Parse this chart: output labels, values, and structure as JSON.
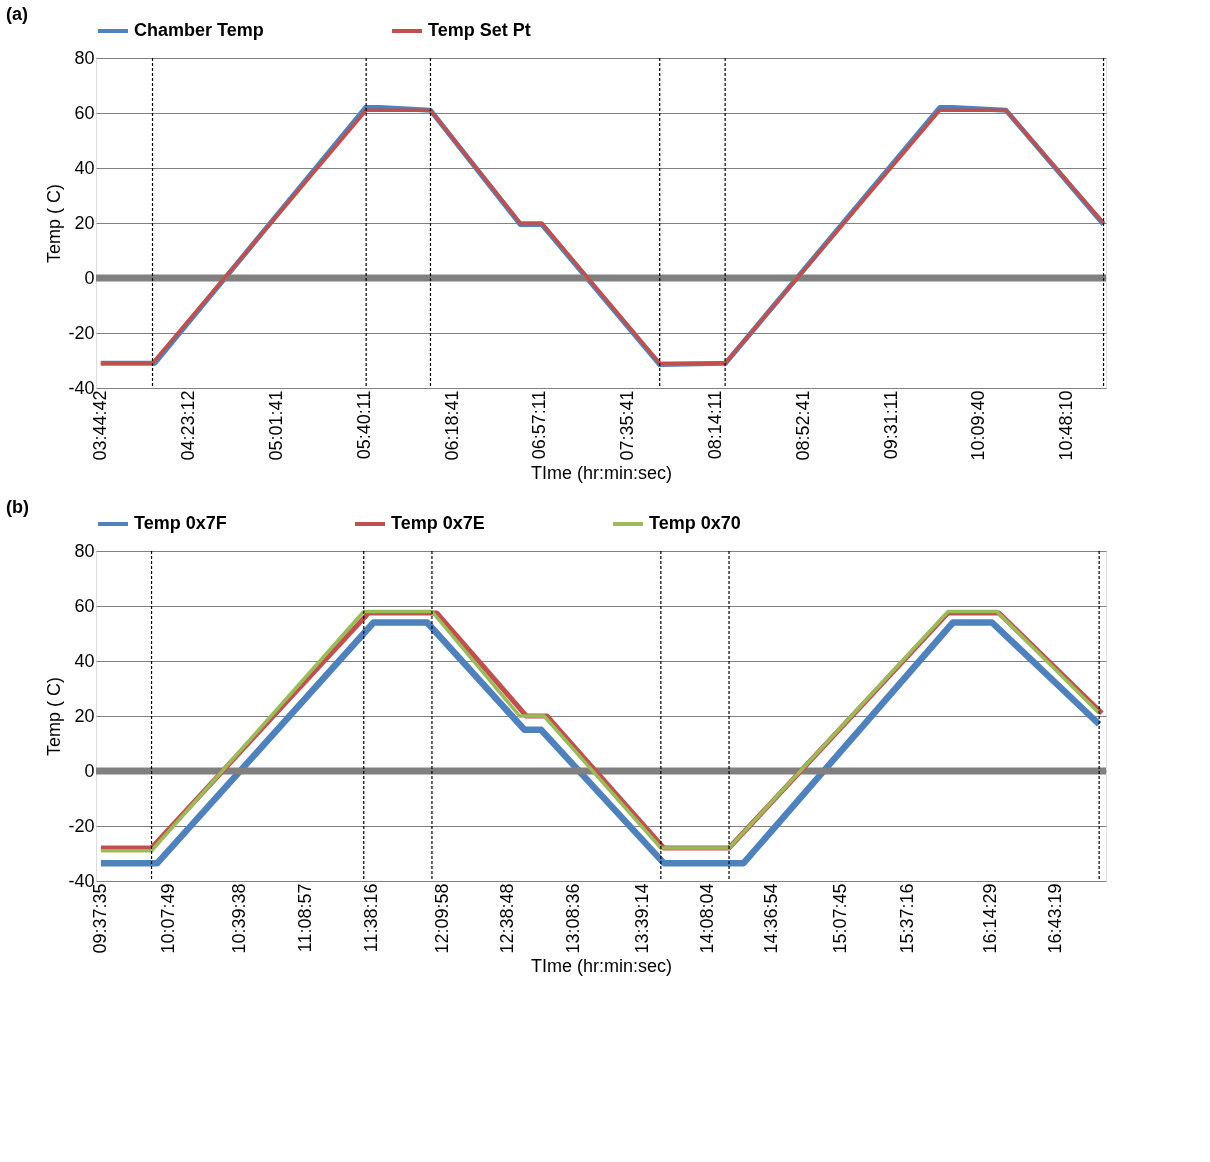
{
  "chart_data": [
    {
      "type": "line",
      "title": "(a)",
      "xlabel": "TIme (hr:min:sec)",
      "ylabel": "Temp ( C)",
      "legend": "top",
      "grid": "y",
      "marker": "none",
      "line_style": "solid",
      "xlim": [
        3.71,
        11.09
      ],
      "ylim": [
        -40,
        80
      ],
      "yticks": [
        -40,
        -20,
        0,
        20,
        40,
        60,
        80
      ],
      "xticks": [
        {
          "value": 3.745,
          "label": "03:44:42"
        },
        {
          "value": 4.3867,
          "label": "04:23:12"
        },
        {
          "value": 5.0281,
          "label": "05:01:41"
        },
        {
          "value": 5.6697,
          "label": "05:40:11"
        },
        {
          "value": 6.3114,
          "label": "06:18:41"
        },
        {
          "value": 6.9531,
          "label": "06:57:11"
        },
        {
          "value": 7.5947,
          "label": "07:35:41"
        },
        {
          "value": 8.2364,
          "label": "08:14:11"
        },
        {
          "value": 8.8781,
          "label": "08:52:41"
        },
        {
          "value": 9.5197,
          "label": "09:31:11"
        },
        {
          "value": 10.1611,
          "label": "10:09:40"
        },
        {
          "value": 10.8028,
          "label": "10:48:10"
        }
      ],
      "series": [
        {
          "name": "Chamber Temp",
          "color": "#4f81bd",
          "x": [
            3.745,
            4.14,
            5.68,
            5.78,
            6.154,
            6.81,
            6.967,
            7.829,
            8.31,
            9.875,
            9.97,
            10.359,
            11.072
          ],
          "values": [
            -31,
            -31,
            62,
            62,
            61,
            19.5,
            19.5,
            -31.5,
            -31,
            62,
            62,
            61,
            19.5
          ]
        },
        {
          "name": "Temp Set Pt",
          "color": "#c0504d",
          "x": [
            3.745,
            4.123,
            5.684,
            6.154,
            6.81,
            6.967,
            7.829,
            8.307,
            9.875,
            10.359,
            11.072
          ],
          "values": [
            -31,
            -31,
            61,
            61,
            20,
            20,
            -31,
            -31,
            61,
            61,
            20
          ]
        }
      ],
      "ref_lines": [
        {
          "axis": "y",
          "value": 0,
          "color": "#808080",
          "line_style": "solid"
        },
        {
          "axis": "x",
          "value": 4.123,
          "color": "#000000",
          "line_style": "dashed"
        },
        {
          "axis": "x",
          "value": 5.684,
          "color": "#000000",
          "line_style": "dashed"
        },
        {
          "axis": "x",
          "value": 6.154,
          "color": "#000000",
          "line_style": "dashed"
        },
        {
          "axis": "x",
          "value": 7.829,
          "color": "#000000",
          "line_style": "dashed"
        },
        {
          "axis": "x",
          "value": 8.307,
          "color": "#000000",
          "line_style": "dashed"
        },
        {
          "axis": "x",
          "value": 11.072,
          "color": "#000000",
          "line_style": "dashed"
        }
      ]
    },
    {
      "type": "line",
      "title": "(b)",
      "xlabel": "TIme (hr:min:sec)",
      "ylabel": "Temp ( C)",
      "legend": "top",
      "grid": "y",
      "marker": "none",
      "line_style": "solid",
      "xlim": [
        9.59,
        17.1
      ],
      "ylim": [
        -40,
        80
      ],
      "yticks": [
        -40,
        -20,
        0,
        20,
        40,
        60,
        80
      ],
      "xticks": [
        {
          "value": 9.6264,
          "label": "09:37:35"
        },
        {
          "value": 10.1303,
          "label": "10:07:49"
        },
        {
          "value": 10.6606,
          "label": "10:39:38"
        },
        {
          "value": 11.1492,
          "label": "11:08:57"
        },
        {
          "value": 11.6378,
          "label": "11:38:16"
        },
        {
          "value": 12.1661,
          "label": "12:09:58"
        },
        {
          "value": 12.6467,
          "label": "12:38:48"
        },
        {
          "value": 13.1433,
          "label": "13:08:36"
        },
        {
          "value": 13.6539,
          "label": "13:39:14"
        },
        {
          "value": 14.1344,
          "label": "14:08:04"
        },
        {
          "value": 14.615,
          "label": "14:36:54"
        },
        {
          "value": 15.1292,
          "label": "15:07:45"
        },
        {
          "value": 15.6211,
          "label": "15:37:16"
        },
        {
          "value": 16.2414,
          "label": "16:14:29"
        },
        {
          "value": 16.7219,
          "label": "16:43:19"
        }
      ],
      "series": [
        {
          "name": "Temp 0x7F",
          "color": "#4f81bd",
          "x": [
            9.6264,
            10.046,
            11.654,
            12.052,
            12.776,
            12.899,
            13.812,
            14.405,
            15.962,
            16.252,
            17.049
          ],
          "values": [
            -33.5,
            -33.5,
            54,
            54,
            15,
            15,
            -33.5,
            -33.5,
            54,
            54,
            17
          ]
        },
        {
          "name": "Temp 0x7E",
          "color": "#c0504d",
          "x": [
            9.6264,
            10.003,
            11.618,
            12.124,
            12.79,
            12.943,
            13.812,
            14.297,
            15.926,
            16.303,
            17.07
          ],
          "values": [
            -28,
            -28,
            57.5,
            57.5,
            20,
            20,
            -28,
            -28,
            57.5,
            57.5,
            21
          ]
        },
        {
          "name": "Temp 0x70",
          "color": "#9bbb59",
          "x": [
            9.6264,
            10.003,
            11.581,
            12.088,
            12.74,
            12.921,
            13.79,
            14.297,
            15.926,
            16.288,
            17.049
          ],
          "values": [
            -29,
            -29,
            58,
            58,
            20,
            20,
            -28,
            -28,
            58,
            58,
            21
          ]
        }
      ],
      "ref_lines": [
        {
          "axis": "y",
          "value": 0,
          "color": "#808080",
          "line_style": "solid"
        },
        {
          "axis": "x",
          "value": 10.003,
          "color": "#000000",
          "line_style": "dashed"
        },
        {
          "axis": "x",
          "value": 11.581,
          "color": "#000000",
          "line_style": "dashed"
        },
        {
          "axis": "x",
          "value": 12.088,
          "color": "#000000",
          "line_style": "dashed"
        },
        {
          "axis": "x",
          "value": 13.79,
          "color": "#000000",
          "line_style": "dashed"
        },
        {
          "axis": "x",
          "value": 14.297,
          "color": "#000000",
          "line_style": "dashed"
        },
        {
          "axis": "x",
          "value": 17.049,
          "color": "#000000",
          "line_style": "dashed"
        }
      ]
    }
  ]
}
